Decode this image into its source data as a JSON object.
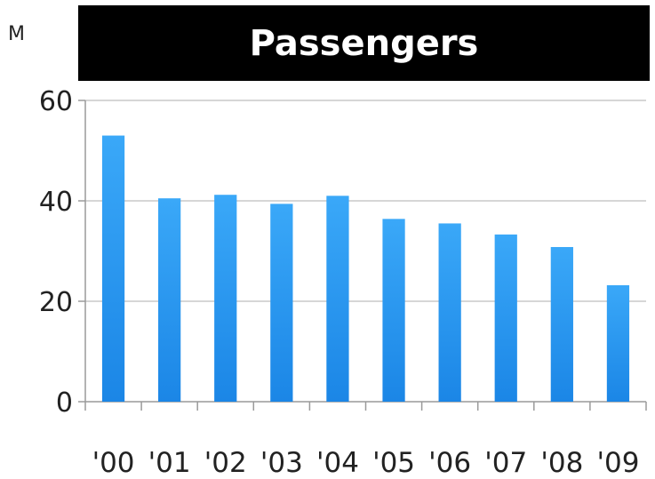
{
  "chart_data": {
    "type": "bar",
    "title": "Passengers",
    "ylabel": "M",
    "xlabel": "",
    "categories": [
      "'00",
      "'01",
      "'02",
      "'03",
      "'04",
      "'05",
      "'06",
      "'07",
      "'08",
      "'09"
    ],
    "values": [
      53,
      40.5,
      41.2,
      39.4,
      41,
      36.4,
      35.5,
      33.3,
      30.8,
      23.2
    ],
    "ylim": [
      0,
      60
    ],
    "yticks": [
      "0",
      "20",
      "40",
      "60"
    ],
    "grid": true,
    "legend": "none",
    "colors": {
      "bar_top": "#3aa8f8",
      "bar_bottom": "#1b86e6",
      "grid": "#c8c8c8",
      "axis": "#9a9a9a",
      "title_bg": "#000000",
      "title_fg": "#ffffff"
    }
  }
}
